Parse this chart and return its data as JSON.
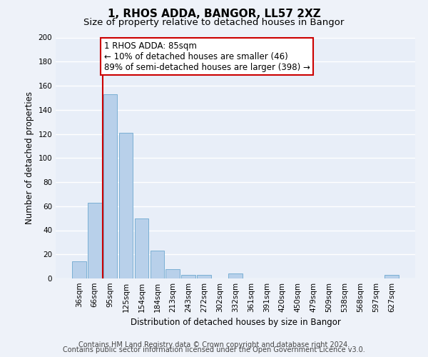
{
  "title": "1, RHOS ADDA, BANGOR, LL57 2XZ",
  "subtitle": "Size of property relative to detached houses in Bangor",
  "xlabel": "Distribution of detached houses by size in Bangor",
  "ylabel": "Number of detached properties",
  "categories": [
    "36sqm",
    "66sqm",
    "95sqm",
    "125sqm",
    "154sqm",
    "184sqm",
    "213sqm",
    "243sqm",
    "272sqm",
    "302sqm",
    "332sqm",
    "361sqm",
    "391sqm",
    "420sqm",
    "450sqm",
    "479sqm",
    "509sqm",
    "538sqm",
    "568sqm",
    "597sqm",
    "627sqm"
  ],
  "values": [
    14,
    63,
    153,
    121,
    50,
    23,
    8,
    3,
    3,
    0,
    4,
    0,
    0,
    0,
    0,
    0,
    0,
    0,
    0,
    0,
    3
  ],
  "bar_color": "#b8d0ea",
  "bar_edge_color": "#7aafd4",
  "highlight_line_color": "#cc0000",
  "annotation_box_text_line1": "1 RHOS ADDA: 85sqm",
  "annotation_box_text_line2": "← 10% of detached houses are smaller (46)",
  "annotation_box_text_line3": "89% of semi-detached houses are larger (398) →",
  "annotation_box_color": "#ffffff",
  "annotation_box_edge_color": "#cc0000",
  "ylim": [
    0,
    200
  ],
  "yticks": [
    0,
    20,
    40,
    60,
    80,
    100,
    120,
    140,
    160,
    180,
    200
  ],
  "footer_line1": "Contains HM Land Registry data © Crown copyright and database right 2024.",
  "footer_line2": "Contains public sector information licensed under the Open Government Licence v3.0.",
  "bg_color": "#eef2f9",
  "plot_bg_color": "#e8eef8",
  "grid_color": "#ffffff",
  "title_fontsize": 11,
  "subtitle_fontsize": 9.5,
  "axis_label_fontsize": 8.5,
  "tick_fontsize": 7.5,
  "annotation_fontsize": 8.5,
  "footer_fontsize": 7
}
